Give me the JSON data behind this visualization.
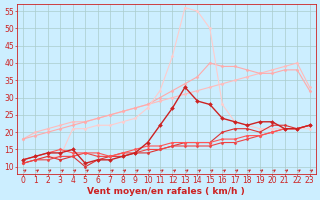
{
  "background_color": "#cceeff",
  "grid_color": "#aacccc",
  "xlabel": "Vent moyen/en rafales ( km/h )",
  "xlim": [
    -0.5,
    23.5
  ],
  "ylim": [
    8,
    57
  ],
  "yticks": [
    10,
    15,
    20,
    25,
    30,
    35,
    40,
    45,
    50,
    55
  ],
  "xticks": [
    0,
    1,
    2,
    3,
    4,
    5,
    6,
    7,
    8,
    9,
    10,
    11,
    12,
    13,
    14,
    15,
    16,
    17,
    18,
    19,
    20,
    21,
    22,
    23
  ],
  "series": [
    {
      "x": [
        0,
        1,
        2,
        3,
        4,
        5,
        6,
        7,
        8,
        9,
        10,
        11,
        12,
        13,
        14,
        15,
        16,
        17,
        18,
        19,
        20,
        21,
        22,
        23
      ],
      "y": [
        18,
        20,
        21,
        22,
        23,
        23,
        24,
        25,
        26,
        27,
        28,
        29,
        30,
        31,
        32,
        33,
        34,
        35,
        36,
        37,
        38,
        39,
        40,
        33
      ],
      "color": "#ffbbbb",
      "linewidth": 0.8,
      "marker": "D",
      "markersize": 1.5,
      "zorder": 2
    },
    {
      "x": [
        0,
        1,
        2,
        3,
        4,
        5,
        6,
        7,
        8,
        9,
        10,
        11,
        12,
        13,
        14,
        15,
        16,
        17,
        18,
        19,
        20,
        21,
        22,
        23
      ],
      "y": [
        18,
        19,
        20,
        21,
        22,
        23,
        24,
        25,
        26,
        27,
        28,
        30,
        32,
        34,
        36,
        40,
        39,
        39,
        38,
        37,
        37,
        38,
        38,
        32
      ],
      "color": "#ffaaaa",
      "linewidth": 0.8,
      "marker": "D",
      "markersize": 1.5,
      "zorder": 2
    },
    {
      "x": [
        0,
        1,
        2,
        3,
        4,
        5,
        6,
        7,
        8,
        9,
        10,
        11,
        12,
        13,
        14,
        15,
        16,
        17,
        18,
        19,
        20,
        21,
        22,
        23
      ],
      "y": [
        11,
        12,
        13,
        13,
        21,
        21,
        22,
        22,
        23,
        24,
        27,
        32,
        42,
        56,
        55,
        50,
        28,
        23,
        22,
        21,
        21,
        21,
        21,
        21
      ],
      "color": "#ffcccc",
      "linewidth": 0.8,
      "marker": "D",
      "markersize": 1.5,
      "zorder": 2
    },
    {
      "x": [
        0,
        1,
        2,
        3,
        4,
        5,
        6,
        7,
        8,
        9,
        10,
        11,
        12,
        13,
        14,
        15,
        16,
        17,
        18,
        19,
        20,
        21,
        22,
        23
      ],
      "y": [
        12,
        13,
        14,
        14,
        15,
        11,
        12,
        12,
        13,
        14,
        17,
        22,
        27,
        33,
        29,
        28,
        24,
        23,
        22,
        23,
        23,
        21,
        21,
        22
      ],
      "color": "#cc2222",
      "linewidth": 1.0,
      "marker": "D",
      "markersize": 2.0,
      "zorder": 4
    },
    {
      "x": [
        0,
        1,
        2,
        3,
        4,
        5,
        6,
        7,
        8,
        9,
        10,
        11,
        12,
        13,
        14,
        15,
        16,
        17,
        18,
        19,
        20,
        21,
        22,
        23
      ],
      "y": [
        11,
        12,
        13,
        12,
        13,
        10,
        12,
        13,
        13,
        14,
        14,
        15,
        16,
        17,
        17,
        17,
        20,
        21,
        21,
        20,
        22,
        22,
        21,
        22
      ],
      "color": "#dd3333",
      "linewidth": 0.8,
      "marker": "D",
      "markersize": 1.5,
      "zorder": 3
    },
    {
      "x": [
        0,
        1,
        2,
        3,
        4,
        5,
        6,
        7,
        8,
        9,
        10,
        11,
        12,
        13,
        14,
        15,
        16,
        17,
        18,
        19,
        20,
        21,
        22,
        23
      ],
      "y": [
        11,
        12,
        12,
        13,
        13,
        14,
        13,
        13,
        14,
        14,
        15,
        15,
        16,
        16,
        16,
        16,
        17,
        17,
        18,
        19,
        20,
        21,
        21,
        22
      ],
      "color": "#ee4444",
      "linewidth": 0.8,
      "marker": "D",
      "markersize": 1.5,
      "zorder": 3
    },
    {
      "x": [
        0,
        1,
        2,
        3,
        4,
        5,
        6,
        7,
        8,
        9,
        10,
        11,
        12,
        13,
        14,
        15,
        16,
        17,
        18,
        19,
        20,
        21,
        22,
        23
      ],
      "y": [
        12,
        13,
        14,
        15,
        14,
        14,
        14,
        13,
        14,
        15,
        16,
        16,
        17,
        17,
        17,
        17,
        18,
        18,
        19,
        19,
        20,
        21,
        21,
        22
      ],
      "color": "#ff5555",
      "linewidth": 0.8,
      "marker": "D",
      "markersize": 1.5,
      "zorder": 3
    }
  ],
  "arrow_color": "#cc2222",
  "label_fontsize": 6.5,
  "tick_fontsize": 5.5
}
